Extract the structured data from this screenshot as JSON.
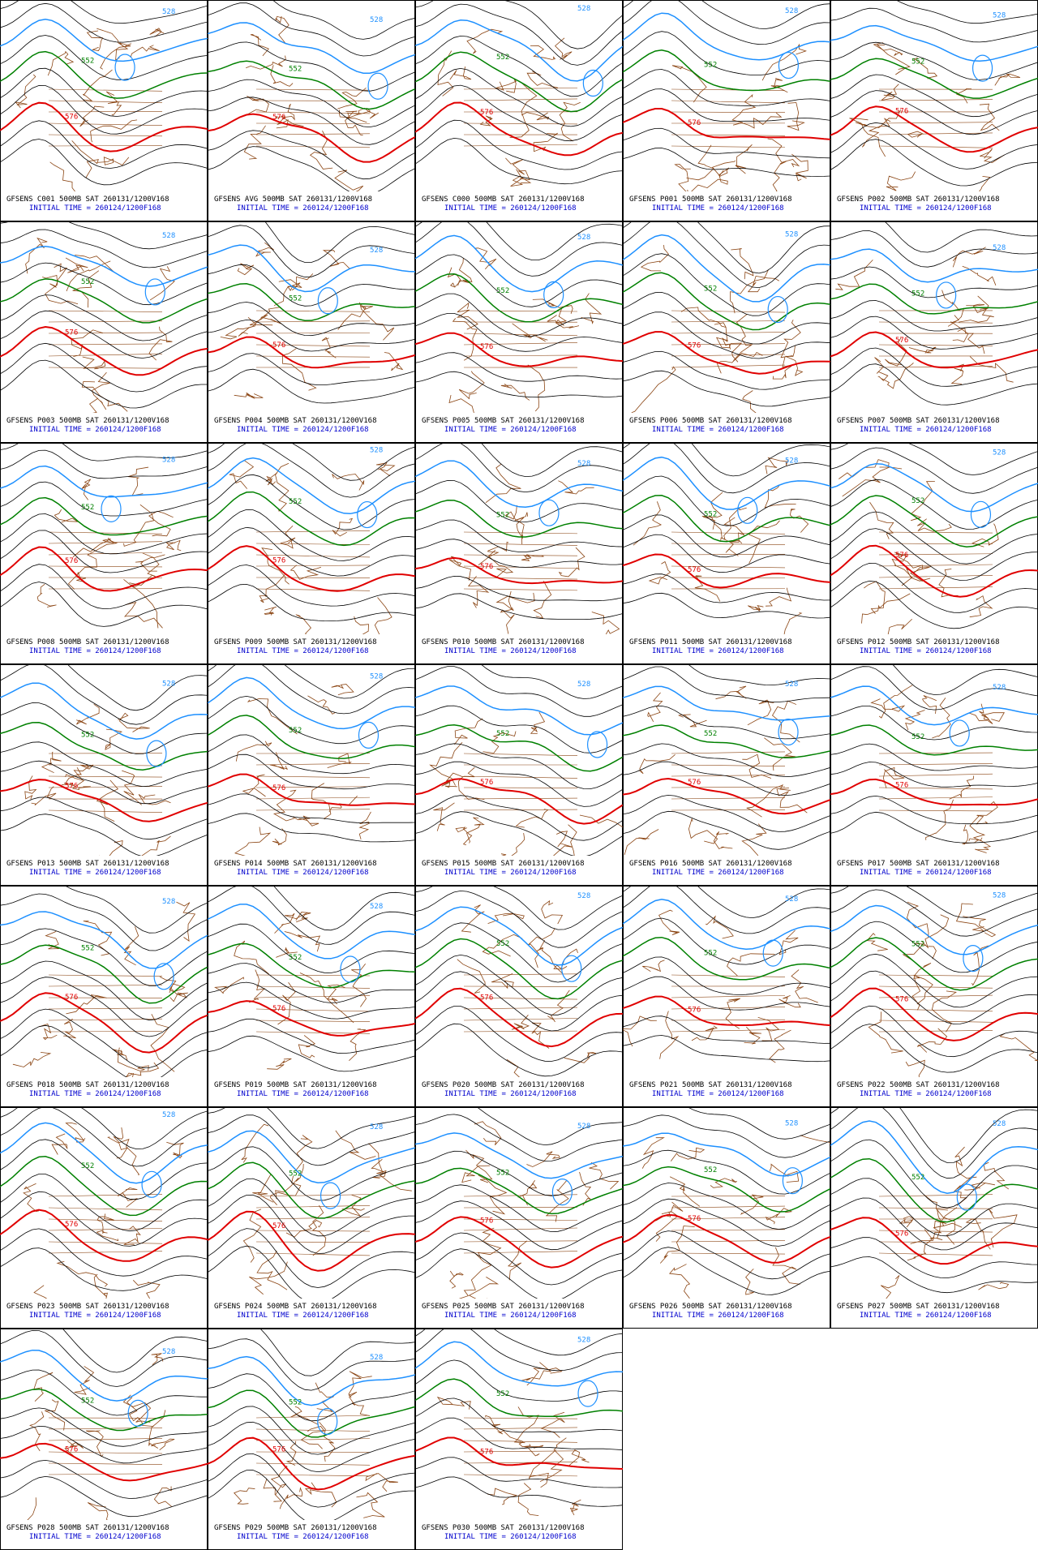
{
  "panels": [
    {
      "title": "GFSENS C001 500MB SAT 260131/1200V168",
      "initial": "INITIAL TIME = 260124/1200F168",
      "labels": [
        "528",
        "552",
        "576"
      ]
    },
    {
      "title": "GFSENS AVG 500MB SAT 260131/1200V168",
      "initial": "INITIAL TIME = 260124/1200F168",
      "labels": [
        "528",
        "552",
        "576"
      ]
    },
    {
      "title": "GFSENS C000 500MB SAT 260131/1200V168",
      "initial": "INITIAL TIME = 260124/1200F168",
      "labels": [
        "528",
        "552",
        "576"
      ]
    },
    {
      "title": "GFSENS P001 500MB SAT 260131/1200V168",
      "initial": "INITIAL TIME = 260124/1200F168",
      "labels": [
        "528",
        "552",
        "576"
      ]
    },
    {
      "title": "GFSENS P002 500MB SAT 260131/1200V168",
      "initial": "INITIAL TIME = 260124/1200F168",
      "labels": [
        "528",
        "552",
        "576"
      ]
    },
    {
      "title": "GFSENS P003 500MB SAT 260131/1200V168",
      "initial": "INITIAL TIME = 260124/1200F168",
      "labels": [
        "528",
        "552",
        "576"
      ]
    },
    {
      "title": "GFSENS P004 500MB SAT 260131/1200V168",
      "initial": "INITIAL TIME = 260124/1200F168",
      "labels": [
        "528",
        "552",
        "576"
      ]
    },
    {
      "title": "GFSENS P005 500MB SAT 260131/1200V168",
      "initial": "INITIAL TIME = 260124/1200F168",
      "labels": [
        "528",
        "552",
        "576"
      ]
    },
    {
      "title": "GFSENS P006 500MB SAT 260131/1200V168",
      "initial": "INITIAL TIME = 260124/1200F168",
      "labels": [
        "528",
        "552",
        "576"
      ]
    },
    {
      "title": "GFSENS P007 500MB SAT 260131/1200V168",
      "initial": "INITIAL TIME = 260124/1200F168",
      "labels": [
        "528",
        "552",
        "576"
      ]
    },
    {
      "title": "GFSENS P008 500MB SAT 260131/1200V168",
      "initial": "INITIAL TIME = 260124/1200F168",
      "labels": [
        "528",
        "552",
        "576"
      ]
    },
    {
      "title": "GFSENS P009 500MB SAT 260131/1200V168",
      "initial": "INITIAL TIME = 260124/1200F168",
      "labels": [
        "528",
        "552",
        "576"
      ]
    },
    {
      "title": "GFSENS P010 500MB SAT 260131/1200V168",
      "initial": "INITIAL TIME = 260124/1200F168",
      "labels": [
        "528",
        "552",
        "576"
      ]
    },
    {
      "title": "GFSENS P011 500MB SAT 260131/1200V168",
      "initial": "INITIAL TIME = 260124/1200F168",
      "labels": [
        "528",
        "552",
        "576"
      ]
    },
    {
      "title": "GFSENS P012 500MB SAT 260131/1200V168",
      "initial": "INITIAL TIME = 260124/1200F168",
      "labels": [
        "528",
        "552",
        "576"
      ]
    },
    {
      "title": "GFSENS P013 500MB SAT 260131/1200V168",
      "initial": "INITIAL TIME = 260124/1200F168",
      "labels": [
        "528",
        "552",
        "576"
      ]
    },
    {
      "title": "GFSENS P014 500MB SAT 260131/1200V168",
      "initial": "INITIAL TIME = 260124/1200F168",
      "labels": [
        "528",
        "552",
        "576"
      ]
    },
    {
      "title": "GFSENS P015 500MB SAT 260131/1200V168",
      "initial": "INITIAL TIME = 260124/1200F168",
      "labels": [
        "528",
        "552",
        "576"
      ]
    },
    {
      "title": "GFSENS P016 500MB SAT 260131/1200V168",
      "initial": "INITIAL TIME = 260124/1200F168",
      "labels": [
        "528",
        "552",
        "576"
      ]
    },
    {
      "title": "GFSENS P017 500MB SAT 260131/1200V168",
      "initial": "INITIAL TIME = 260124/1200F168",
      "labels": [
        "528",
        "552",
        "576"
      ]
    },
    {
      "title": "GFSENS P018 500MB SAT 260131/1200V168",
      "initial": "INITIAL TIME = 260124/1200F168",
      "labels": [
        "528",
        "552",
        "576"
      ]
    },
    {
      "title": "GFSENS P019 500MB SAT 260131/1200V168",
      "initial": "INITIAL TIME = 260124/1200F168",
      "labels": [
        "528",
        "552",
        "576"
      ]
    },
    {
      "title": "GFSENS P020 500MB SAT 260131/1200V168",
      "initial": "INITIAL TIME = 260124/1200F168",
      "labels": [
        "528",
        "552",
        "576"
      ]
    },
    {
      "title": "GFSENS P021 500MB SAT 260131/1200V168",
      "initial": "INITIAL TIME = 260124/1200F168",
      "labels": [
        "528",
        "552",
        "576"
      ]
    },
    {
      "title": "GFSENS P022 500MB SAT 260131/1200V168",
      "initial": "INITIAL TIME = 260124/1200F168",
      "labels": [
        "528",
        "552",
        "576"
      ]
    },
    {
      "title": "GFSENS P023 500MB SAT 260131/1200V168",
      "initial": "INITIAL TIME = 260124/1200F168",
      "labels": [
        "528",
        "552",
        "576"
      ]
    },
    {
      "title": "GFSENS P024 500MB SAT 260131/1200V168",
      "initial": "INITIAL TIME = 260124/1200F168",
      "labels": [
        "528",
        "552",
        "576"
      ]
    },
    {
      "title": "GFSENS P025 500MB SAT 260131/1200V168",
      "initial": "INITIAL TIME = 260124/1200F168",
      "labels": [
        "528",
        "552",
        "576"
      ]
    },
    {
      "title": "GFSENS P026 500MB SAT 260131/1200V168",
      "initial": "INITIAL TIME = 260124/1200F168",
      "labels": [
        "528",
        "552",
        "576"
      ]
    },
    {
      "title": "GFSENS P027 500MB SAT 260131/1200V168",
      "initial": "INITIAL TIME = 260124/1200F168",
      "labels": [
        "528",
        "552",
        "576"
      ]
    },
    {
      "title": "GFSENS P028 500MB SAT 260131/1200V168",
      "initial": "INITIAL TIME = 260124/1200F168",
      "labels": [
        "528",
        "552",
        "576"
      ]
    },
    {
      "title": "GFSENS P029 500MB SAT 260131/1200V168",
      "initial": "INITIAL TIME = 260124/1200F168",
      "labels": [
        "528",
        "552",
        "576"
      ]
    },
    {
      "title": "GFSENS P030 500MB SAT 260131/1200V168",
      "initial": "INITIAL TIME = 260124/1200F168",
      "labels": [
        "528",
        "552",
        "576"
      ]
    }
  ]
}
